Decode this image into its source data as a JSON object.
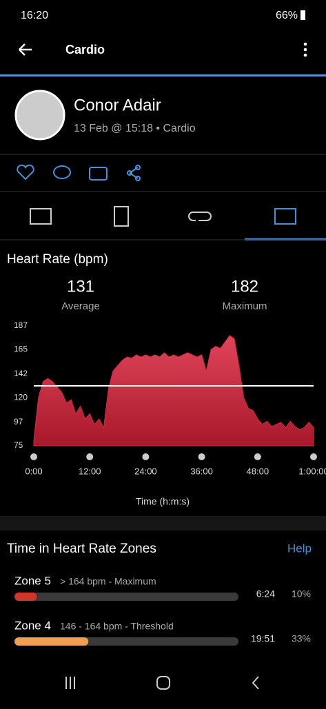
{
  "status_bar": {
    "time": "16:20",
    "battery": "66%"
  },
  "header": {
    "title": "Cardio"
  },
  "profile": {
    "name": "Conor Adair",
    "subtitle": "13 Feb @ 15:18 • Cardio"
  },
  "chart_data": {
    "type": "area",
    "title": "Heart Rate (bpm)",
    "color": "#d42a3f",
    "stats": [
      {
        "value": 131,
        "label": "Average"
      },
      {
        "value": 182,
        "label": "Maximum"
      }
    ],
    "x_label": "Time (h:m:s)",
    "x": [
      0,
      1,
      2,
      3,
      4,
      5,
      6,
      7,
      8,
      9,
      10,
      11,
      12,
      13,
      14,
      15,
      16,
      17,
      18,
      19,
      20,
      21,
      22,
      23,
      24,
      25,
      26,
      27,
      28,
      29,
      30,
      31,
      32,
      33,
      34,
      35,
      36,
      37,
      38,
      39,
      40,
      41,
      42,
      43,
      44,
      45,
      46,
      47,
      48,
      49,
      50,
      51,
      52,
      53,
      54,
      55,
      56,
      57,
      58,
      59,
      60
    ],
    "values": [
      80,
      120,
      135,
      138,
      135,
      130,
      125,
      115,
      118,
      105,
      112,
      100,
      105,
      95,
      100,
      92,
      128,
      145,
      150,
      155,
      158,
      157,
      160,
      158,
      160,
      158,
      160,
      158,
      162,
      158,
      160,
      158,
      160,
      162,
      160,
      158,
      160,
      145,
      165,
      168,
      166,
      172,
      178,
      175,
      150,
      120,
      110,
      108,
      100,
      95,
      98,
      93,
      95,
      97,
      92,
      98,
      93,
      90,
      92,
      97,
      92
    ],
    "xlim": [
      0,
      60
    ],
    "xticks": [
      {
        "value": 0,
        "label": "0:00"
      },
      {
        "value": 12,
        "label": "12:00"
      },
      {
        "value": 24,
        "label": "24:00"
      },
      {
        "value": 36,
        "label": "36:00"
      },
      {
        "value": 48,
        "label": "48:00"
      },
      {
        "value": 60,
        "label": "1:00:00"
      }
    ],
    "ylim": [
      75,
      187
    ],
    "yticks": [
      75,
      97,
      120,
      142,
      165,
      187
    ]
  },
  "zones": {
    "title": "Time in Heart Rate Zones",
    "help": "Help",
    "items": [
      {
        "name": "Zone 5",
        "range": "> 164 bpm - Maximum",
        "time": "6:24",
        "percent": 10,
        "percent_label": "10%",
        "color": "#d0362c"
      },
      {
        "name": "Zone 4",
        "range": "146 - 164 bpm - Threshold",
        "time": "19:51",
        "percent": 33,
        "percent_label": "33%",
        "color": "#f0a050"
      }
    ]
  }
}
